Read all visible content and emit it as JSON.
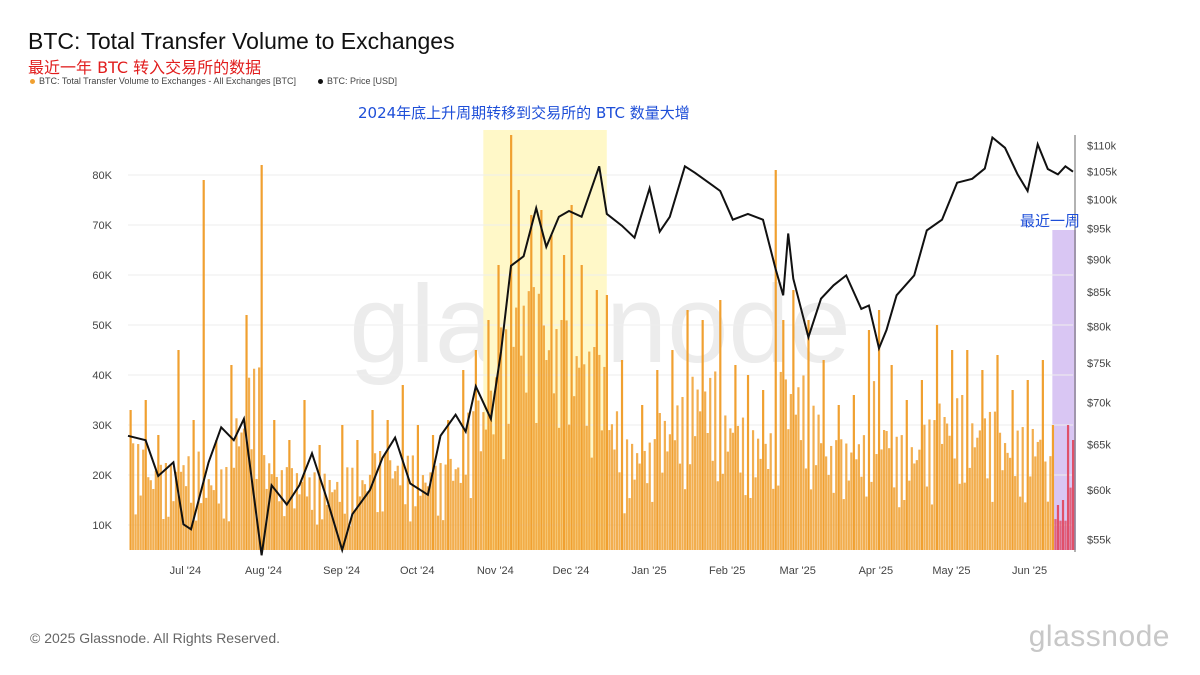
{
  "title": "BTC: Total Transfer Volume to Exchanges",
  "subtitle": "最近一年 BTC 转入交易所的数据",
  "legend": {
    "volume_label": "BTC: Total Transfer Volume to Exchanges - All Exchanges [BTC]",
    "price_label": "BTC: Price [USD]"
  },
  "annotations": {
    "highlight_text": "2024年底上升周期转移到交易所的 BTC 数量大增",
    "recent_week": "最近一周"
  },
  "watermark": "glassnode",
  "footer": "© 2025 Glassnode. All Rights Reserved.",
  "logo": "glassnode",
  "colors": {
    "volume": "#f0a030",
    "price": "#111111",
    "highlight_band": "#fff8c8",
    "recent_band": "#d9c6f3",
    "recent_bars": "#e0506a",
    "annotation": "#1d4ed8",
    "subtitle": "#e11d1d"
  },
  "chart_data": {
    "type": "bar",
    "x_range": [
      "2024-06-13",
      "2025-06-23"
    ],
    "x_ticks": [
      "Jul '24",
      "Aug '24",
      "Sep '24",
      "Oct '24",
      "Nov '24",
      "Dec '24",
      "Jan '25",
      "Feb '25",
      "Mar '25",
      "Apr '25",
      "May '25",
      "Jun '25"
    ],
    "y_left": {
      "ticks": [
        "10K",
        "20K",
        "30K",
        "40K",
        "50K",
        "60K",
        "70K",
        "80K"
      ],
      "range": [
        5000,
        88000
      ]
    },
    "y_right": {
      "ticks": [
        "$55k",
        "$60k",
        "$65k",
        "$70k",
        "$75k",
        "$80k",
        "$85k",
        "$90k",
        "$95k",
        "$100k",
        "$105k",
        "$110k"
      ],
      "range": [
        54000,
        112000
      ],
      "scale": "log"
    },
    "grid": true,
    "highlight_range": [
      "2024-11-01",
      "2024-12-20"
    ],
    "recent_range": [
      "2025-06-16",
      "2025-06-23"
    ],
    "series": [
      {
        "name": "BTC: Total Transfer Volume to Exchanges - All Exchanges [BTC]",
        "type": "bar",
        "points": [
          [
            "2024-06-14",
            33000
          ],
          [
            "2024-06-20",
            35000
          ],
          [
            "2024-06-25",
            28000
          ],
          [
            "2024-07-03",
            45000
          ],
          [
            "2024-07-09",
            31000
          ],
          [
            "2024-07-13",
            79000
          ],
          [
            "2024-07-18",
            27000
          ],
          [
            "2024-07-24",
            42000
          ],
          [
            "2024-07-30",
            52000
          ],
          [
            "2024-08-05",
            82000
          ],
          [
            "2024-08-10",
            31000
          ],
          [
            "2024-08-16",
            27000
          ],
          [
            "2024-08-22",
            35000
          ],
          [
            "2024-08-28",
            26000
          ],
          [
            "2024-09-06",
            30000
          ],
          [
            "2024-09-12",
            27000
          ],
          [
            "2024-09-18",
            33000
          ],
          [
            "2024-09-24",
            31000
          ],
          [
            "2024-09-30",
            38000
          ],
          [
            "2024-10-06",
            30000
          ],
          [
            "2024-10-12",
            28000
          ],
          [
            "2024-10-18",
            31000
          ],
          [
            "2024-10-24",
            41000
          ],
          [
            "2024-10-29",
            45000
          ],
          [
            "2024-11-03",
            51000
          ],
          [
            "2024-11-07",
            62000
          ],
          [
            "2024-11-12",
            88000
          ],
          [
            "2024-11-15",
            77000
          ],
          [
            "2024-11-20",
            72000
          ],
          [
            "2024-11-24",
            73000
          ],
          [
            "2024-11-28",
            68000
          ],
          [
            "2024-12-03",
            64000
          ],
          [
            "2024-12-06",
            74000
          ],
          [
            "2024-12-10",
            62000
          ],
          [
            "2024-12-16",
            57000
          ],
          [
            "2024-12-20",
            56000
          ],
          [
            "2024-12-26",
            43000
          ],
          [
            "2025-01-03",
            34000
          ],
          [
            "2025-01-09",
            41000
          ],
          [
            "2025-01-15",
            45000
          ],
          [
            "2025-01-21",
            53000
          ],
          [
            "2025-01-27",
            51000
          ],
          [
            "2025-02-03",
            55000
          ],
          [
            "2025-02-09",
            42000
          ],
          [
            "2025-02-14",
            40000
          ],
          [
            "2025-02-20",
            37000
          ],
          [
            "2025-02-25",
            81000
          ],
          [
            "2025-02-28",
            51000
          ],
          [
            "2025-03-04",
            57000
          ],
          [
            "2025-03-10",
            51000
          ],
          [
            "2025-03-16",
            43000
          ],
          [
            "2025-03-22",
            34000
          ],
          [
            "2025-03-28",
            36000
          ],
          [
            "2025-04-03",
            49000
          ],
          [
            "2025-04-07",
            53000
          ],
          [
            "2025-04-12",
            42000
          ],
          [
            "2025-04-18",
            35000
          ],
          [
            "2025-04-24",
            39000
          ],
          [
            "2025-04-30",
            50000
          ],
          [
            "2025-05-06",
            45000
          ],
          [
            "2025-05-12",
            45000
          ],
          [
            "2025-05-18",
            41000
          ],
          [
            "2025-05-24",
            44000
          ],
          [
            "2025-05-30",
            37000
          ],
          [
            "2025-06-05",
            39000
          ],
          [
            "2025-06-11",
            43000
          ],
          [
            "2025-06-15",
            30000
          ],
          [
            "2025-06-17",
            14000
          ],
          [
            "2025-06-19",
            15000
          ],
          [
            "2025-06-21",
            30000
          ],
          [
            "2025-06-23",
            27000
          ]
        ]
      },
      {
        "name": "BTC: Price [USD]",
        "type": "line",
        "points": [
          [
            "2024-06-13",
            66000
          ],
          [
            "2024-06-20",
            65500
          ],
          [
            "2024-06-25",
            61500
          ],
          [
            "2024-07-01",
            63000
          ],
          [
            "2024-07-05",
            56500
          ],
          [
            "2024-07-08",
            56000
          ],
          [
            "2024-07-15",
            63000
          ],
          [
            "2024-07-20",
            67000
          ],
          [
            "2024-07-25",
            65500
          ],
          [
            "2024-07-29",
            68000
          ],
          [
            "2024-08-05",
            53500
          ],
          [
            "2024-08-09",
            60500
          ],
          [
            "2024-08-15",
            58500
          ],
          [
            "2024-08-20",
            60500
          ],
          [
            "2024-08-25",
            64000
          ],
          [
            "2024-08-31",
            59000
          ],
          [
            "2024-09-06",
            54000
          ],
          [
            "2024-09-10",
            57500
          ],
          [
            "2024-09-17",
            60000
          ],
          [
            "2024-09-22",
            63500
          ],
          [
            "2024-09-27",
            65800
          ],
          [
            "2024-10-03",
            60700
          ],
          [
            "2024-10-10",
            59500
          ],
          [
            "2024-10-15",
            66000
          ],
          [
            "2024-10-21",
            68500
          ],
          [
            "2024-10-25",
            66500
          ],
          [
            "2024-10-29",
            72000
          ],
          [
            "2024-11-04",
            68000
          ],
          [
            "2024-11-08",
            76500
          ],
          [
            "2024-11-12",
            89000
          ],
          [
            "2024-11-17",
            90500
          ],
          [
            "2024-11-22",
            98500
          ],
          [
            "2024-11-26",
            92000
          ],
          [
            "2024-12-01",
            97000
          ],
          [
            "2024-12-05",
            98000
          ],
          [
            "2024-12-10",
            97000
          ],
          [
            "2024-12-17",
            106000
          ],
          [
            "2024-12-20",
            97500
          ],
          [
            "2024-12-26",
            95500
          ],
          [
            "2024-12-31",
            93500
          ],
          [
            "2025-01-06",
            102000
          ],
          [
            "2025-01-10",
            94500
          ],
          [
            "2025-01-14",
            97000
          ],
          [
            "2025-01-20",
            106000
          ],
          [
            "2025-01-24",
            104800
          ],
          [
            "2025-01-31",
            102500
          ],
          [
            "2025-02-03",
            101500
          ],
          [
            "2025-02-08",
            96500
          ],
          [
            "2025-02-14",
            97500
          ],
          [
            "2025-02-20",
            96500
          ],
          [
            "2025-02-25",
            88500
          ],
          [
            "2025-02-28",
            84500
          ],
          [
            "2025-03-02",
            94200
          ],
          [
            "2025-03-04",
            87000
          ],
          [
            "2025-03-10",
            78500
          ],
          [
            "2025-03-15",
            84000
          ],
          [
            "2025-03-20",
            86000
          ],
          [
            "2025-03-25",
            87500
          ],
          [
            "2025-03-31",
            82500
          ],
          [
            "2025-04-03",
            83000
          ],
          [
            "2025-04-07",
            77000
          ],
          [
            "2025-04-10",
            79500
          ],
          [
            "2025-04-14",
            84500
          ],
          [
            "2025-04-21",
            87500
          ],
          [
            "2025-04-26",
            94700
          ],
          [
            "2025-05-02",
            96500
          ],
          [
            "2025-05-08",
            103000
          ],
          [
            "2025-05-14",
            103700
          ],
          [
            "2025-05-19",
            105600
          ],
          [
            "2025-05-22",
            111500
          ],
          [
            "2025-05-27",
            109500
          ],
          [
            "2025-06-01",
            104500
          ],
          [
            "2025-06-05",
            101500
          ],
          [
            "2025-06-09",
            110200
          ],
          [
            "2025-06-13",
            105500
          ],
          [
            "2025-06-17",
            104500
          ],
          [
            "2025-06-20",
            106000
          ],
          [
            "2025-06-23",
            105000
          ]
        ]
      }
    ]
  }
}
